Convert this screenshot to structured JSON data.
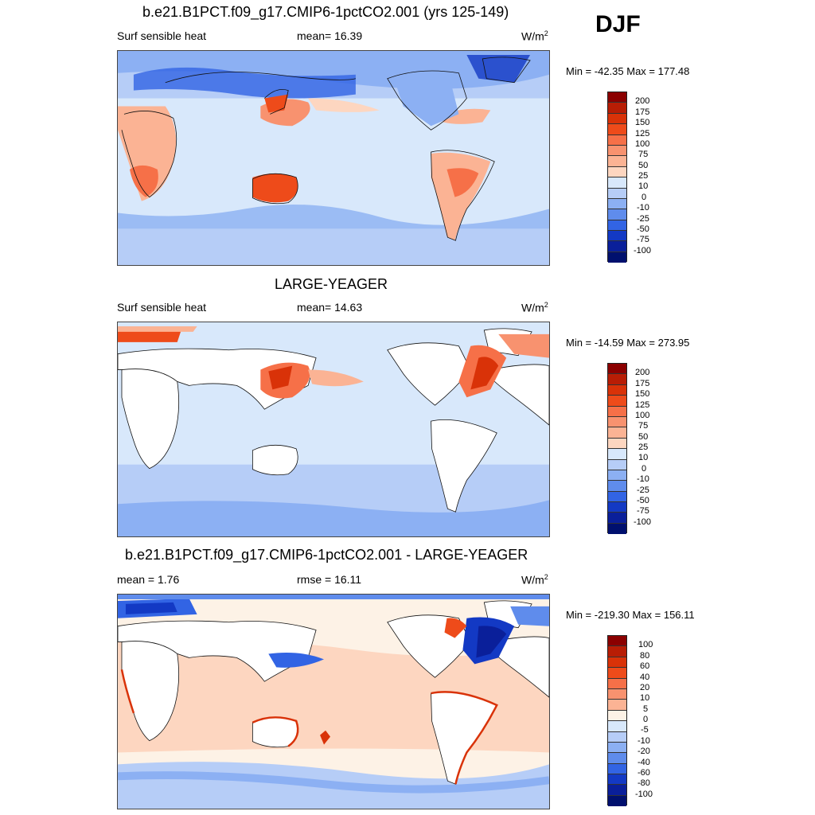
{
  "season": "DJF",
  "panels": [
    {
      "title": "b.e21.B1PCT.f09_g17.CMIP6-1pctCO2.001 (yrs 125-149)",
      "left_label": "Surf sensible heat",
      "mid_label": "mean=  16.39",
      "units_base": "W/m",
      "units_exp": "2",
      "minmax": "Min = -42.35 Max = 177.48",
      "levels": [
        "200",
        "175",
        "150",
        "125",
        "100",
        "75",
        "50",
        "25",
        "10",
        "0",
        "-10",
        "-25",
        "-50",
        "-75",
        "-100"
      ],
      "colors": [
        "#8b0000",
        "#b81d05",
        "#d93208",
        "#ee4b1a",
        "#f67048",
        "#f8926f",
        "#fbb394",
        "#fdd6c0",
        "#fdf2e6",
        "#d8e8fb",
        "#b6cdf7",
        "#8cb0f3",
        "#5f8cec",
        "#3264e4",
        "#1339c4",
        "#0a1f9a",
        "#00106e"
      ]
    },
    {
      "title": "LARGE-YEAGER",
      "left_label": "Surf sensible heat",
      "mid_label": "mean=  14.63",
      "units_base": "W/m",
      "units_exp": "2",
      "minmax": "Min = -14.59 Max = 273.95",
      "levels": [
        "200",
        "175",
        "150",
        "125",
        "100",
        "75",
        "50",
        "25",
        "10",
        "0",
        "-10",
        "-25",
        "-50",
        "-75",
        "-100"
      ],
      "colors": [
        "#8b0000",
        "#b81d05",
        "#d93208",
        "#ee4b1a",
        "#f67048",
        "#f8926f",
        "#fbb394",
        "#fdd6c0",
        "#fdf2e6",
        "#d8e8fb",
        "#b6cdf7",
        "#8cb0f3",
        "#5f8cec",
        "#3264e4",
        "#1339c4",
        "#0a1f9a",
        "#00106e"
      ]
    },
    {
      "title": "b.e21.B1PCT.f09_g17.CMIP6-1pctCO2.001 - LARGE-YEAGER",
      "left_label": "mean =   1.76",
      "mid_label": "rmse =  16.11",
      "units_base": "W/m",
      "units_exp": "2",
      "minmax": "Min = -219.30 Max = 156.11",
      "levels": [
        "100",
        "80",
        "60",
        "40",
        "20",
        "10",
        "5",
        "0",
        "-5",
        "-10",
        "-20",
        "-40",
        "-60",
        "-80",
        "-100"
      ],
      "colors": [
        "#8b0000",
        "#b81d05",
        "#d93208",
        "#ee4b1a",
        "#f67048",
        "#f8926f",
        "#fbb394",
        "#fdd6c0",
        "#fdf2e6",
        "#d8e8fb",
        "#b6cdf7",
        "#8cb0f3",
        "#5f8cec",
        "#3264e4",
        "#1339c4",
        "#0a1f9a",
        "#00106e"
      ]
    }
  ]
}
